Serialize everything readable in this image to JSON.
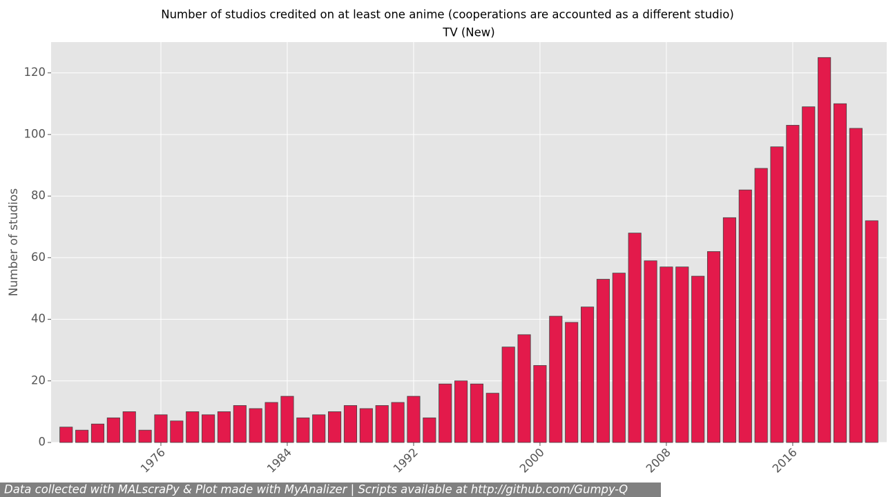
{
  "chart_data": {
    "type": "bar",
    "title": "Number of studios credited on at least one anime (cooperations are accounted as a different studio)",
    "subtitle": "TV (New)",
    "ylabel": "Number of studios",
    "footer": "Data collected with MALscraPy & Plot made with MyAnalizer | Scripts available at http://github.com/Gumpy-Q",
    "x": [
      1970,
      1971,
      1972,
      1973,
      1974,
      1975,
      1976,
      1977,
      1978,
      1979,
      1980,
      1981,
      1982,
      1983,
      1984,
      1985,
      1986,
      1987,
      1988,
      1989,
      1990,
      1991,
      1992,
      1993,
      1994,
      1995,
      1996,
      1997,
      1998,
      1999,
      2000,
      2001,
      2002,
      2003,
      2004,
      2005,
      2006,
      2007,
      2008,
      2009,
      2010,
      2011,
      2012,
      2013,
      2014,
      2015,
      2016,
      2017,
      2018,
      2019,
      2020,
      2021
    ],
    "values": [
      5,
      4,
      6,
      8,
      10,
      4,
      9,
      7,
      10,
      9,
      10,
      12,
      11,
      13,
      15,
      8,
      9,
      10,
      12,
      11,
      12,
      13,
      15,
      8,
      19,
      20,
      19,
      16,
      31,
      35,
      25,
      41,
      39,
      44,
      53,
      55,
      68,
      59,
      57,
      57,
      54,
      62,
      73,
      82,
      89,
      96,
      103,
      109,
      125,
      110,
      102,
      72
    ],
    "color": "#e31a4b",
    "xlim": [
      1969.05,
      2021.95
    ],
    "xticks": [
      1976,
      1984,
      1992,
      2000,
      2008,
      2016
    ],
    "ylim": [
      0,
      130
    ],
    "yticks": [
      0,
      20,
      40,
      60,
      80,
      100,
      120
    ],
    "grid": true
  }
}
